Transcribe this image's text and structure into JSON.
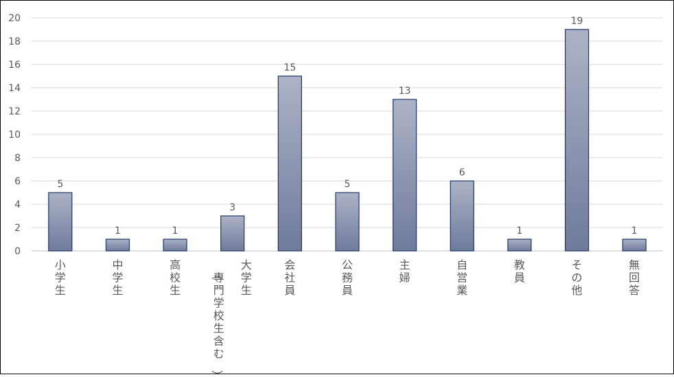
{
  "chart_data": {
    "type": "bar",
    "title": "",
    "xlabel": "",
    "ylabel": "",
    "ylim": [
      0,
      20
    ],
    "yticks": [
      0,
      2,
      4,
      6,
      8,
      10,
      12,
      14,
      16,
      18,
      20
    ],
    "grid": true,
    "legend": "none",
    "categories": [
      [
        "小学生"
      ],
      [
        "中学生"
      ],
      [
        "高校生"
      ],
      [
        "（専門学校生含む）",
        "大学生"
      ],
      [
        "会社員"
      ],
      [
        "公務員"
      ],
      [
        "主婦"
      ],
      [
        "自営業"
      ],
      [
        "教員"
      ],
      [
        "その他"
      ],
      [
        "無回答"
      ]
    ],
    "values": [
      5,
      1,
      1,
      3,
      15,
      5,
      13,
      6,
      1,
      19,
      1
    ],
    "colors": {
      "bar_top": "#adb3c6",
      "bar_bottom": "#6f7b9c",
      "bar_stroke": "#1f3566",
      "grid": "#d9d9d9",
      "axis": "#bfbfbf",
      "text": "#595959"
    }
  }
}
